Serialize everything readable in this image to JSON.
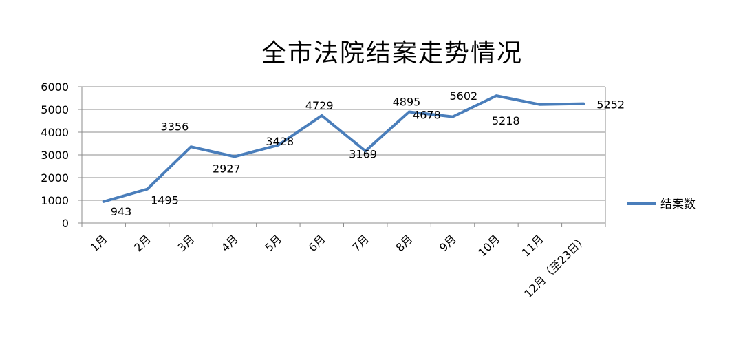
{
  "chart_data": {
    "type": "line",
    "title": "全市法院结案走势情况",
    "categories": [
      "1月",
      "2月",
      "3月",
      "4月",
      "5月",
      "6月",
      "7月",
      "8月",
      "9月",
      "10月",
      "11月",
      "12月（至23日）"
    ],
    "series": [
      {
        "name": "结案数",
        "color": "#4a7ebb",
        "values": [
          943,
          1495,
          3356,
          2927,
          3428,
          4729,
          3169,
          4895,
          4678,
          5602,
          5218,
          5252
        ]
      }
    ],
    "y_ticks": [
      "0",
      "1000",
      "2000",
      "3000",
      "4000",
      "5000",
      "6000"
    ],
    "ylim": [
      0,
      6000
    ],
    "grid": true,
    "legend_position": "right"
  }
}
